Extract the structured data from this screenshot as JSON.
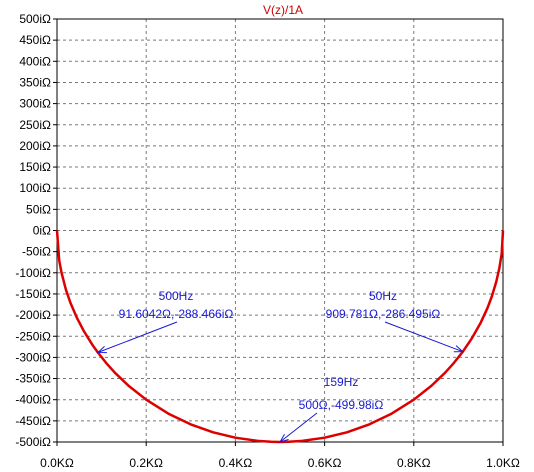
{
  "chart_data": {
    "type": "line",
    "title": "V(z)/1A",
    "xlabel": "",
    "ylabel": "",
    "xlim": [
      0,
      1000
    ],
    "ylim": [
      -500,
      500
    ],
    "grid": true,
    "x_ticks": [
      {
        "value": 0,
        "label": "0.0KΩ"
      },
      {
        "value": 200,
        "label": "0.2KΩ"
      },
      {
        "value": 400,
        "label": "0.4KΩ"
      },
      {
        "value": 600,
        "label": "0.6KΩ"
      },
      {
        "value": 800,
        "label": "0.8KΩ"
      },
      {
        "value": 1000,
        "label": "1.0KΩ"
      }
    ],
    "y_ticks": [
      {
        "value": 500,
        "label": "500iΩ"
      },
      {
        "value": 450,
        "label": "450iΩ"
      },
      {
        "value": 400,
        "label": "400iΩ"
      },
      {
        "value": 350,
        "label": "350iΩ"
      },
      {
        "value": 300,
        "label": "300iΩ"
      },
      {
        "value": 250,
        "label": "250iΩ"
      },
      {
        "value": 200,
        "label": "200iΩ"
      },
      {
        "value": 150,
        "label": "150iΩ"
      },
      {
        "value": 100,
        "label": "100iΩ"
      },
      {
        "value": 50,
        "label": "50iΩ"
      },
      {
        "value": 0,
        "label": "0iΩ"
      },
      {
        "value": -50,
        "label": "-50iΩ"
      },
      {
        "value": -100,
        "label": "-100iΩ"
      },
      {
        "value": -150,
        "label": "-150iΩ"
      },
      {
        "value": -200,
        "label": "-200iΩ"
      },
      {
        "value": -250,
        "label": "-250iΩ"
      },
      {
        "value": -300,
        "label": "-300iΩ"
      },
      {
        "value": -350,
        "label": "-350iΩ"
      },
      {
        "value": -400,
        "label": "-400iΩ"
      },
      {
        "value": -450,
        "label": "-450iΩ"
      },
      {
        "value": -500,
        "label": "-500iΩ"
      }
    ],
    "series": [
      {
        "color": "#dd0000",
        "x": [
          0,
          5,
          10,
          20,
          30,
          45,
          60,
          80,
          91.6042,
          110,
          130,
          160,
          200,
          250,
          300,
          350,
          400,
          450,
          480,
          500,
          520,
          550,
          600,
          650,
          700,
          750,
          800,
          840,
          870,
          890,
          909.781,
          930,
          950,
          965,
          975,
          985,
          992,
          997,
          1000
        ],
        "y": [
          0,
          -70.5,
          -99.5,
          -140,
          -170.6,
          -207.3,
          -237.5,
          -271.3,
          -288.466,
          -312.9,
          -336.3,
          -366.6,
          -400,
          -433,
          -458.3,
          -477,
          -489.9,
          -497.5,
          -499.6,
          -499.98,
          -499.6,
          -497.5,
          -489.9,
          -477,
          -458.3,
          -433,
          -400,
          -366.6,
          -336.3,
          -312.9,
          -286.495,
          -255.1,
          -217.9,
          -183.8,
          -156.1,
          -120.7,
          -88.5,
          -54.5,
          0
        ]
      }
    ],
    "annotations": [
      {
        "title": "500Hz",
        "value": "91.6042Ω,-288.466iΩ",
        "x": 91.6042,
        "y": -288.466
      },
      {
        "title": "50Hz",
        "value": "909.781Ω,-286.495iΩ",
        "x": 909.781,
        "y": -286.495
      },
      {
        "title": "159Hz",
        "value": "500Ω,-499.98iΩ",
        "x": 500,
        "y": -499.98
      }
    ],
    "colors": {
      "grid": "#7a7a7a",
      "axis": "#000000",
      "title": "#cc0000",
      "annotation": "#1a1ad2",
      "curve": "#dd0000"
    }
  }
}
